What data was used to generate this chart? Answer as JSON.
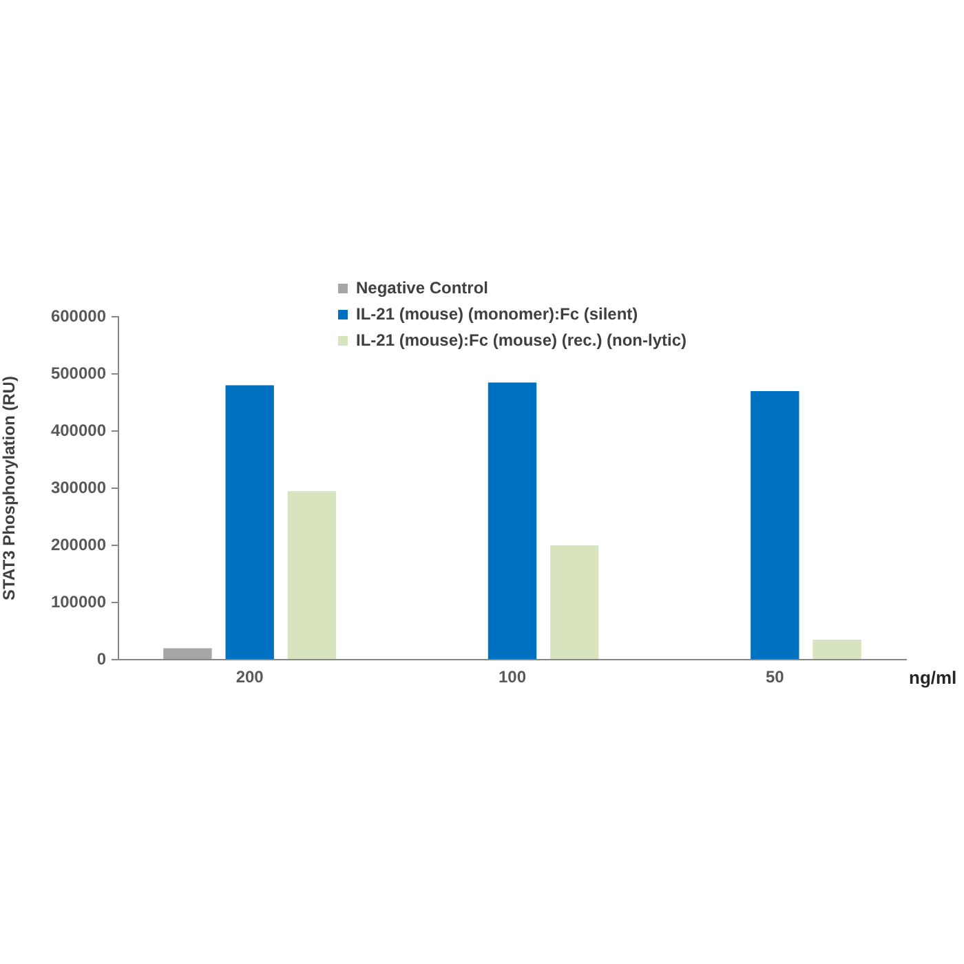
{
  "chart_data": {
    "type": "bar",
    "xlabel": "ng/ml",
    "ylabel": "STAT3 Phosphorylation (RU)",
    "categories": [
      "200",
      "100",
      "50"
    ],
    "series": [
      {
        "name": "Negative Control",
        "color": "#a6a6a6",
        "values": [
          20000,
          null,
          null
        ]
      },
      {
        "name": "IL-21 (mouse) (monomer):Fc (silent)",
        "color": "#0070c0",
        "values": [
          480000,
          485000,
          470000
        ]
      },
      {
        "name": "IL-21 (mouse):Fc (mouse) (rec.) (non-lytic)",
        "color": "#d7e4bd",
        "values": [
          295000,
          200000,
          35000
        ]
      }
    ],
    "ylim": [
      0,
      600000
    ],
    "yticks": [
      0,
      100000,
      200000,
      300000,
      400000,
      500000,
      600000
    ],
    "grid": false,
    "legend": "top"
  }
}
